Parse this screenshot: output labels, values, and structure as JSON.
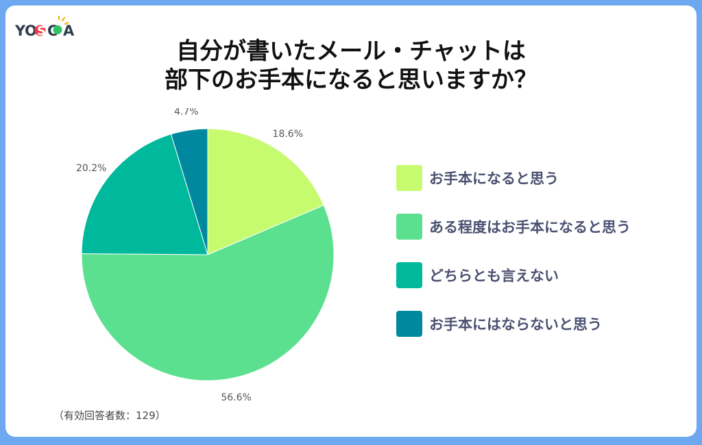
{
  "brand": {
    "logo_text": "YOSCA"
  },
  "title": {
    "line1": "自分が書いたメール・チャットは",
    "line2": "部下のお手本になると思いますか？"
  },
  "footnote": "（有効回答者数：129）",
  "chart_data": {
    "type": "pie",
    "title": "自分が書いたメール・チャットは部下のお手本になると思いますか？",
    "slices": [
      {
        "label": "お手本になると思う",
        "value": 18.6,
        "display": "18.6%",
        "color": "#c6fb6f"
      },
      {
        "label": "ある程度はお手本になると思う",
        "value": 56.6,
        "display": "56.6%",
        "color": "#5be08f"
      },
      {
        "label": "どちらとも言えない",
        "value": 20.2,
        "display": "20.2%",
        "color": "#00b89c"
      },
      {
        "label": "お手本にはならないと思う",
        "value": 4.7,
        "display": "4.7%",
        "color": "#00889f"
      }
    ],
    "start_angle": "12 o'clock",
    "direction": "clockwise",
    "legend_position": "right"
  }
}
